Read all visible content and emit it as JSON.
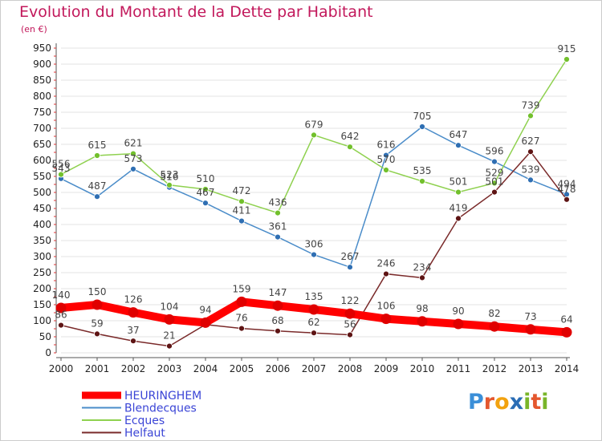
{
  "title": "Evolution du Montant de la Dette par Habitant",
  "unit_label": "(en €)",
  "brand": {
    "text": "Proxiti",
    "letters": [
      "P",
      "r",
      "o",
      "x",
      "i",
      "t",
      "i"
    ],
    "colors": [
      "#3b8fd8",
      "#e4572e",
      "#f2a20f",
      "#2a6db5",
      "#79b529",
      "#e4572e",
      "#79b529"
    ]
  },
  "colors": {
    "title": "#c2185b",
    "grid": "#e3e3e3",
    "axis": "#555555"
  },
  "chart_data": {
    "type": "line",
    "title": "Evolution du Montant de la Dette par Habitant",
    "subtitle": "(en €)",
    "xlabel": "",
    "ylabel": "",
    "x": [
      "2000",
      "2001",
      "2002",
      "2003",
      "2004",
      "2005",
      "2006",
      "2007",
      "2008",
      "2009",
      "2010",
      "2011",
      "2012",
      "2013",
      "2014"
    ],
    "yticks": [
      0,
      50,
      100,
      150,
      200,
      250,
      300,
      350,
      400,
      450,
      500,
      550,
      600,
      650,
      700,
      750,
      800,
      850,
      900,
      950
    ],
    "ylim": [
      0,
      950
    ],
    "grid": true,
    "legend_position": "bottom-left",
    "series": [
      {
        "name": "Blendecques",
        "color": "#4a8cc9",
        "marker_color": "#2f6fb3",
        "values": [
          543,
          487,
          573,
          516,
          467,
          411,
          361,
          306,
          267,
          616,
          705,
          647,
          596,
          539,
          494
        ],
        "labels_shown": [
          true,
          true,
          true,
          true,
          true,
          true,
          true,
          true,
          true,
          true,
          true,
          true,
          true,
          true,
          true
        ]
      },
      {
        "name": "Ecques",
        "color": "#8fd14f",
        "marker_color": "#72c02c",
        "values": [
          556,
          615,
          621,
          523,
          510,
          472,
          436,
          679,
          642,
          570,
          535,
          501,
          529,
          739,
          915
        ],
        "labels_shown": [
          true,
          true,
          true,
          true,
          true,
          true,
          true,
          true,
          true,
          true,
          true,
          true,
          true,
          true,
          true
        ]
      },
      {
        "name": "Helfaut",
        "color": "#7a2a2a",
        "marker_color": "#5e1414",
        "values": [
          86,
          59,
          37,
          21,
          88,
          76,
          68,
          62,
          56,
          246,
          234,
          419,
          501,
          627,
          478
        ],
        "labels_shown": [
          true,
          true,
          true,
          true,
          false,
          true,
          true,
          true,
          true,
          true,
          true,
          true,
          true,
          true,
          true
        ]
      },
      {
        "name": "HEURINGHEM",
        "color": "#ff0000",
        "marker_color": "#e00000",
        "emphasis": true,
        "values": [
          140,
          150,
          126,
          104,
          94,
          159,
          147,
          135,
          122,
          106,
          98,
          90,
          82,
          73,
          64
        ],
        "labels_shown": [
          true,
          true,
          true,
          true,
          true,
          true,
          true,
          true,
          true,
          true,
          true,
          true,
          true,
          true,
          true
        ]
      }
    ],
    "legend": [
      "HEURINGHEM",
      "Blendecques",
      "Ecques",
      "Helfaut"
    ]
  }
}
